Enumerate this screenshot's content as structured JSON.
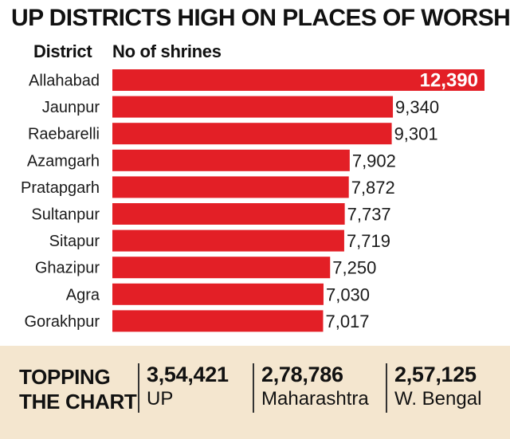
{
  "title": "UP DISTRICTS HIGH ON PLACES OF WORSHIP",
  "header": {
    "district": "District",
    "shrines": "No of shrines"
  },
  "colors": {
    "bar": "#e31f26",
    "highlight_label": "#ffffff",
    "footer_bg": "#f4e6cf"
  },
  "chart_data": {
    "type": "bar",
    "orientation": "horizontal",
    "title": "UP DISTRICTS HIGH ON PLACES OF WORSHIP",
    "xlabel": "No of shrines",
    "ylabel": "District",
    "categories": [
      "Allahabad",
      "Jaunpur",
      "Raebarelli",
      "Azamgarh",
      "Pratapgarh",
      "Sultanpur",
      "Sitapur",
      "Ghazipur",
      "Agra",
      "Gorakhpur"
    ],
    "values": [
      12390,
      9340,
      9301,
      7902,
      7872,
      7737,
      7719,
      7250,
      7030,
      7017
    ],
    "value_labels": [
      "12,390",
      "9,340",
      "9,301",
      "7,902",
      "7,872",
      "7,737",
      "7,719",
      "7,250",
      "7,030",
      "7,017"
    ],
    "grid": false
  },
  "footer": {
    "title_line1": "TOPPING",
    "title_line2": "THE CHART",
    "stats": [
      {
        "value": "3,54,421",
        "label": "UP"
      },
      {
        "value": "2,78,786",
        "label": "Maharashtra"
      },
      {
        "value": "2,57,125",
        "label": "W. Bengal"
      }
    ]
  }
}
